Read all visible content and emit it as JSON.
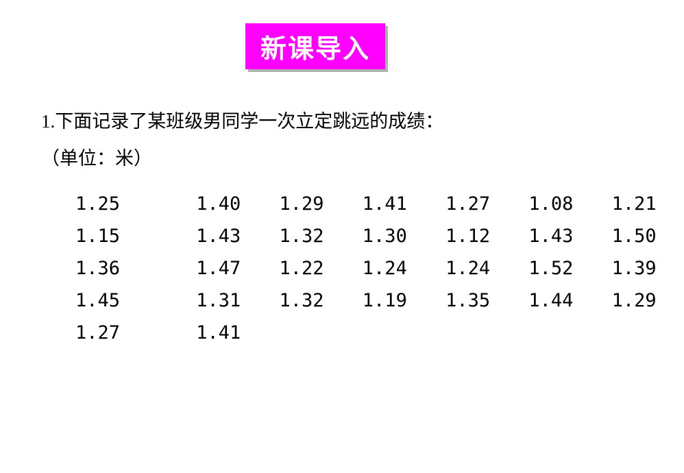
{
  "title": "新课导入",
  "question_line1": "1.下面记录了某班级男同学一次立定跳远的成绩：",
  "question_line2": "（单位：米）",
  "data": {
    "rows": [
      [
        "1.25",
        "1.40",
        "1.29",
        "1.41",
        "1.27",
        "1.08",
        "1.21"
      ],
      [
        "1.15",
        "1.43",
        "1.32",
        "1.30",
        "1.12",
        "1.43",
        "1.50"
      ],
      [
        "1.36",
        "1.47",
        "1.22",
        "1.24",
        "1.24",
        "1.52",
        "1.39"
      ],
      [
        "1.45",
        "1.31",
        "1.32",
        "1.19",
        "1.35",
        "1.44",
        "1.29"
      ],
      [
        "1.27",
        "1.41"
      ]
    ]
  },
  "colors": {
    "title_bg": "#ff00ff",
    "title_text": "#ffffff",
    "title_shadow": "#b0b0b0",
    "body_text": "#000000",
    "background": "#ffffff",
    "watermark": "#d9d9d9"
  },
  "fonts": {
    "title_size": 38,
    "body_size": 27
  },
  "watermark": ""
}
